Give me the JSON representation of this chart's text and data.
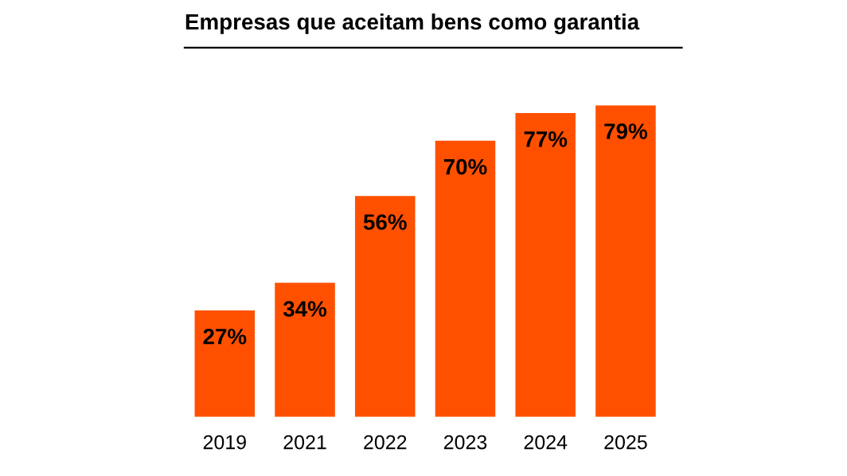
{
  "chart_data": {
    "type": "bar",
    "title": "Empresas que aceitam bens como garantia",
    "categories": [
      "2019",
      "2021",
      "2022",
      "2023",
      "2024",
      "2025"
    ],
    "values": [
      27,
      34,
      56,
      70,
      77,
      79
    ],
    "value_labels": [
      "27%",
      "34%",
      "56%",
      "70%",
      "77%",
      "79%"
    ],
    "color": "#ff5000",
    "grid": false,
    "legend": false
  }
}
